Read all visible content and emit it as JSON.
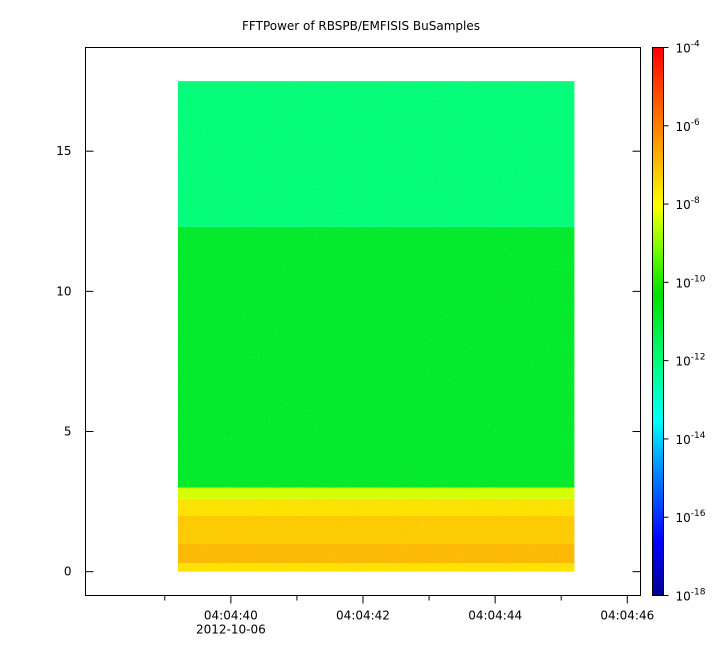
{
  "chart_data": {
    "type": "heatmap",
    "title": "FFTPower of RBSPB/EMFISIS  BuSamples",
    "xlabel": "",
    "ylabel": "",
    "x_ticks": [
      {
        "value": 40,
        "label": "04:04:40",
        "sublabel": "2012-10-06"
      },
      {
        "value": 42,
        "label": "04:04:42",
        "sublabel": ""
      },
      {
        "value": 44,
        "label": "04:04:44",
        "sublabel": ""
      },
      {
        "value": 46,
        "label": "04:04:46",
        "sublabel": ""
      }
    ],
    "x_minor_ticks": [
      39,
      41,
      43,
      45
    ],
    "xlim": [
      37.8,
      46.2
    ],
    "x_data_range": [
      39.2,
      45.2
    ],
    "y_ticks": [
      0,
      5,
      10,
      15
    ],
    "ylim": [
      -0.85,
      18.7
    ],
    "y_data_range": [
      0,
      17.5
    ],
    "bands": [
      {
        "y_from": 0.0,
        "y_to": 0.3,
        "log10_power": -7.6
      },
      {
        "y_from": 0.3,
        "y_to": 1.0,
        "log10_power": -6.9
      },
      {
        "y_from": 1.0,
        "y_to": 2.0,
        "log10_power": -7.2
      },
      {
        "y_from": 2.0,
        "y_to": 2.6,
        "log10_power": -7.6
      },
      {
        "y_from": 2.6,
        "y_to": 3.0,
        "log10_power": -8.4
      },
      {
        "y_from": 3.0,
        "y_to": 12.3,
        "log10_power": -10.9
      },
      {
        "y_from": 12.3,
        "y_to": 17.5,
        "log10_power": -12.0
      }
    ],
    "colorbar": {
      "scale": "log",
      "range": [
        -18,
        -4
      ],
      "tick_exponents": [
        -4,
        -6,
        -8,
        -10,
        -12,
        -14,
        -16,
        -18
      ],
      "colors": [
        "#000090",
        "#0000ff",
        "#00ffff",
        "#00ff66",
        "#00dd00",
        "#ffff00",
        "#ff8000",
        "#ff0000"
      ]
    },
    "grid": false
  }
}
